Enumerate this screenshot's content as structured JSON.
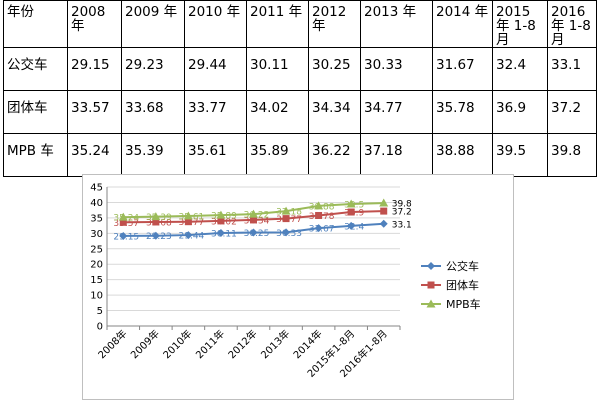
{
  "table": {
    "header": [
      "年份",
      "2008 年",
      "2009 年",
      "2010 年",
      "2011 年",
      "2012 年",
      "2013 年",
      "2014 年",
      "2015 年 1-8 月",
      "2016 年 1-8 月"
    ],
    "rows": [
      {
        "name": "公交车",
        "values": [
          "29.15",
          "29.23",
          "29.44",
          "30.11",
          "30.25",
          "30.33",
          "31.67",
          "32.4",
          "33.1"
        ]
      },
      {
        "name": "团体车",
        "values": [
          "33.57",
          "33.68",
          "33.77",
          "34.02",
          "34.34",
          "34.77",
          "35.78",
          "36.9",
          "37.2"
        ]
      },
      {
        "name": "MPB 车",
        "values": [
          "35.24",
          "35.39",
          "35.61",
          "35.89",
          "36.22",
          "37.18",
          "38.88",
          "39.5",
          "39.8"
        ]
      }
    ]
  },
  "chart_data": {
    "type": "line",
    "categories": [
      "2008年",
      "2009年",
      "2010年",
      "2011年",
      "2012年",
      "2013年",
      "2014年",
      "2015年1-8月",
      "2016年1-8月"
    ],
    "ylim": [
      0,
      45
    ],
    "yticks": [
      0,
      5,
      10,
      15,
      20,
      25,
      30,
      35,
      40,
      45
    ],
    "grid": true,
    "legend": "right",
    "series": [
      {
        "name": "公交车",
        "color": "#4f81bd",
        "marker": "diamond",
        "values": [
          29.15,
          29.23,
          29.44,
          30.11,
          30.25,
          30.33,
          31.67,
          32.4,
          33.1
        ],
        "labels": [
          "29.15",
          "29.23",
          "29.44",
          "30.11",
          "30.25",
          "30.33",
          "31.67",
          "32.4",
          "33.1"
        ]
      },
      {
        "name": "团体车",
        "color": "#c0504d",
        "marker": "square",
        "values": [
          33.57,
          33.68,
          33.77,
          34.02,
          34.34,
          34.77,
          35.78,
          36.9,
          37.2
        ],
        "labels": [
          "33.57",
          "33.68",
          "33.77",
          "34.02",
          "34.34",
          "34.77",
          "35.78",
          "36.9",
          "37.2"
        ]
      },
      {
        "name": "MPB车",
        "color": "#9bbb59",
        "marker": "triangle",
        "values": [
          35.24,
          35.39,
          35.61,
          35.89,
          36.22,
          37.18,
          38.88,
          39.5,
          39.8
        ],
        "labels": [
          "35.24",
          "35.39",
          "35.61",
          "35.89",
          "36.22",
          "37.18",
          "38.88",
          "39.5",
          "39.8"
        ]
      }
    ]
  }
}
